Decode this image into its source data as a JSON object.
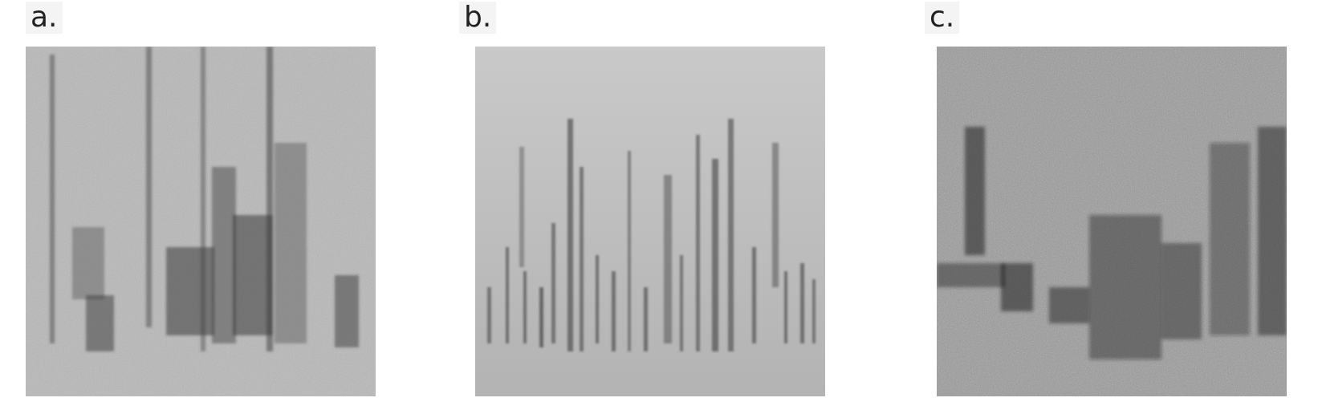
{
  "panels": [
    {
      "label": "a.",
      "image": "spectrogram-a",
      "tone": "light-grey-noise"
    },
    {
      "label": "b.",
      "image": "spectrogram-b",
      "tone": "smooth-light-grey"
    },
    {
      "label": "c.",
      "image": "spectrogram-c",
      "tone": "high-contrast-grey"
    }
  ],
  "colors": {
    "background": "#ffffff",
    "ink": "#1a1a1a"
  }
}
